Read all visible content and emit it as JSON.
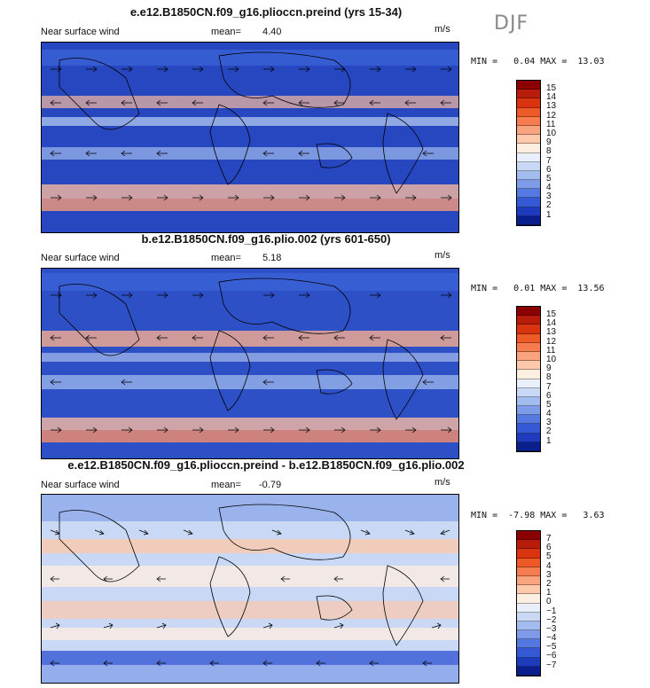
{
  "season": "DJF",
  "panels": [
    {
      "title": "e.e12.B1850CN.f09_g16.plioccn.preind (yrs 15-34)",
      "variable": "Near surface wind",
      "mean_label": "mean=",
      "mean_value": "4.40",
      "units": "m/s",
      "minmax": "MIN =   0.04 MAX =  13.03",
      "colorbar_labels": [
        "15",
        "14",
        "13",
        "12",
        "11",
        "10",
        "9",
        "8",
        "7",
        "6",
        "5",
        "4",
        "3",
        "2",
        "1"
      ],
      "colorbar_colors": [
        "#8b0000",
        "#b81d0b",
        "#d9340f",
        "#ee5a27",
        "#f57c4f",
        "#f9a47e",
        "#fcc9ad",
        "#fdeee2",
        "#eaf0fb",
        "#c8d8f5",
        "#a2bcef",
        "#7d9be8",
        "#5479e0",
        "#3558d4",
        "#1f3bbd",
        "#0a1e8c"
      ]
    },
    {
      "title": "b.e12.B1850CN.f09_g16.plio.002 (yrs 601-650)",
      "variable": "Near surface wind",
      "mean_label": "mean=",
      "mean_value": "5.18",
      "units": "m/s",
      "minmax": "MIN =   0.01 MAX =  13.56",
      "colorbar_labels": [
        "15",
        "14",
        "13",
        "12",
        "11",
        "10",
        "9",
        "8",
        "7",
        "6",
        "5",
        "4",
        "3",
        "2",
        "1"
      ],
      "colorbar_colors": [
        "#8b0000",
        "#b81d0b",
        "#d9340f",
        "#ee5a27",
        "#f57c4f",
        "#f9a47e",
        "#fcc9ad",
        "#fdeee2",
        "#eaf0fb",
        "#c8d8f5",
        "#a2bcef",
        "#7d9be8",
        "#5479e0",
        "#3558d4",
        "#1f3bbd",
        "#0a1e8c"
      ]
    },
    {
      "title": "e.e12.B1850CN.f09_g16.plioccn.preind - b.e12.B1850CN.f09_g16.plio.002",
      "variable": "Near surface wind",
      "mean_label": "mean=",
      "mean_value": "-0.79",
      "units": "m/s",
      "minmax": "MIN =  -7.98 MAX =   3.63",
      "colorbar_labels": [
        "7",
        "6",
        "5",
        "4",
        "3",
        "2",
        "1",
        "0",
        "−1",
        "−2",
        "−3",
        "−4",
        "−5",
        "−6",
        "−7"
      ],
      "colorbar_colors": [
        "#8b0000",
        "#b81d0b",
        "#d9340f",
        "#ee5a27",
        "#f57c4f",
        "#f9a47e",
        "#fcc9ad",
        "#fdeee2",
        "#eaf0fb",
        "#c8d8f5",
        "#a2bcef",
        "#7d9be8",
        "#5479e0",
        "#3558d4",
        "#1f3bbd",
        "#0a1e8c"
      ]
    }
  ]
}
